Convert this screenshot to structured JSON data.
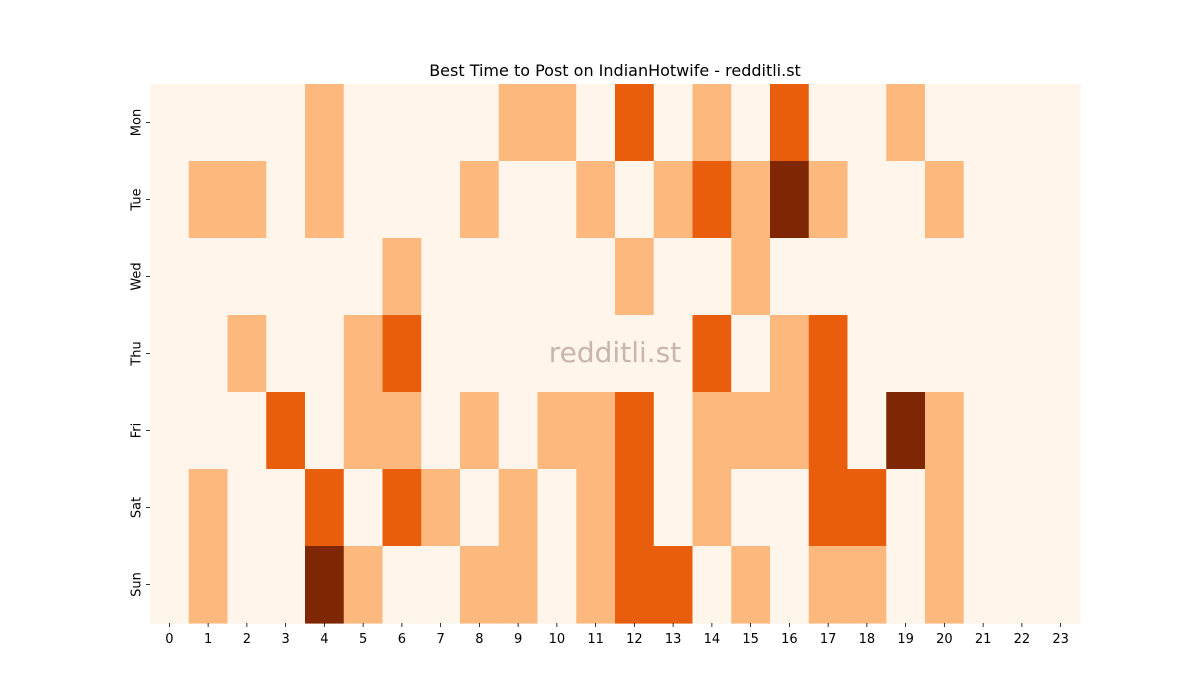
{
  "chart_data": {
    "type": "heatmap",
    "title": "Best Time to Post on IndianHotwife - redditli.st",
    "watermark": "redditli.st",
    "x_categories": [
      "0",
      "1",
      "2",
      "3",
      "4",
      "5",
      "6",
      "7",
      "8",
      "9",
      "10",
      "11",
      "12",
      "13",
      "14",
      "15",
      "16",
      "17",
      "18",
      "19",
      "20",
      "21",
      "22",
      "23"
    ],
    "y_categories": [
      "Mon",
      "Tue",
      "Wed",
      "Thu",
      "Fri",
      "Sat",
      "Sun"
    ],
    "values": [
      [
        0,
        0,
        0,
        0,
        1,
        0,
        0,
        0,
        0,
        1,
        1,
        0,
        2,
        0,
        1,
        0,
        2,
        0,
        0,
        1,
        0,
        0,
        0,
        0
      ],
      [
        0,
        1,
        1,
        0,
        1,
        0,
        0,
        0,
        1,
        0,
        0,
        1,
        0,
        1,
        2,
        1,
        3,
        1,
        0,
        0,
        1,
        0,
        0,
        0
      ],
      [
        0,
        0,
        0,
        0,
        0,
        0,
        1,
        0,
        0,
        0,
        0,
        0,
        1,
        0,
        0,
        1,
        0,
        0,
        0,
        0,
        0,
        0,
        0,
        0
      ],
      [
        0,
        0,
        1,
        0,
        0,
        1,
        2,
        0,
        0,
        0,
        0,
        0,
        0,
        0,
        2,
        0,
        1,
        2,
        0,
        0,
        0,
        0,
        0,
        0
      ],
      [
        0,
        0,
        0,
        2,
        0,
        1,
        1,
        0,
        1,
        0,
        1,
        1,
        2,
        0,
        1,
        1,
        1,
        2,
        0,
        3,
        1,
        0,
        0,
        0
      ],
      [
        0,
        1,
        0,
        0,
        2,
        0,
        2,
        1,
        0,
        1,
        0,
        1,
        2,
        0,
        1,
        0,
        0,
        2,
        2,
        0,
        1,
        0,
        0,
        0
      ],
      [
        0,
        1,
        0,
        0,
        3,
        1,
        0,
        0,
        1,
        1,
        0,
        1,
        2,
        2,
        0,
        1,
        0,
        1,
        1,
        0,
        1,
        0,
        0,
        0
      ]
    ],
    "value_range": [
      0,
      3
    ],
    "colorscale": [
      "#fff5eb",
      "#fdb97d",
      "#e95e0d",
      "#7f2704"
    ],
    "grid": false,
    "legend": "none"
  }
}
